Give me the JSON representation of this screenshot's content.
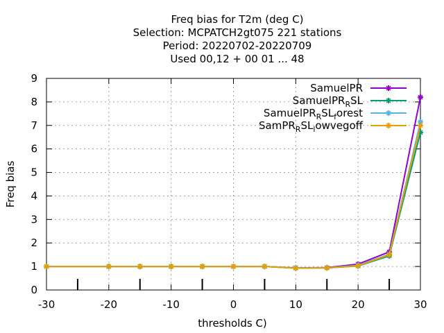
{
  "chart_data": {
    "type": "line",
    "title_lines": [
      "Freq bias  for T2m (deg C)",
      "Selection: MCPATCH2gt075    221 stations",
      "Period: 20220702-20220709",
      "Used  00,12  + 00 01 ... 48"
    ],
    "xlabel": "thresholds C)",
    "ylabel": "Freq bias",
    "xlim": [
      -30,
      30
    ],
    "ylim": [
      0,
      9
    ],
    "xticks": [
      -30,
      -20,
      -10,
      0,
      10,
      20,
      30
    ],
    "xtick_labels": [
      "-30",
      "-20",
      "-10",
      "0",
      "10",
      "20",
      "30"
    ],
    "yticks": [
      0,
      1,
      2,
      3,
      4,
      5,
      6,
      7,
      8,
      9
    ],
    "ytick_labels": [
      "0",
      "1",
      "2",
      "3",
      "4",
      "5",
      "6",
      "7",
      "8",
      "9"
    ],
    "x_minor_ticks": [
      -25,
      -15,
      -5,
      5,
      15,
      25
    ],
    "grid": true,
    "legend_position": "top-right",
    "x": [
      -30,
      -20,
      -15,
      -10,
      -5,
      0,
      5,
      10,
      15,
      20,
      25,
      30
    ],
    "series": [
      {
        "name": "SamuelPR",
        "name_parts": [
          [
            "SamuelPR",
            ""
          ]
        ],
        "color": "#9400d3",
        "values": [
          1.0,
          1.0,
          1.0,
          1.0,
          1.0,
          1.0,
          1.0,
          0.94,
          0.95,
          1.1,
          1.62,
          8.2
        ]
      },
      {
        "name": "SamuelPR_RSL",
        "name_parts": [
          [
            "SamuelPR",
            ""
          ],
          [
            "R",
            "sub"
          ],
          [
            "SL",
            ""
          ]
        ],
        "color": "#009e73",
        "values": [
          1.0,
          1.0,
          1.0,
          1.0,
          1.0,
          1.0,
          1.0,
          0.93,
          0.94,
          1.02,
          1.45,
          6.7
        ]
      },
      {
        "name": "SamuelPR_RSL_forest",
        "name_parts": [
          [
            "SamuelPR",
            ""
          ],
          [
            "R",
            "sub"
          ],
          [
            "SL",
            ""
          ],
          [
            "f",
            "sub"
          ],
          [
            "orest",
            ""
          ]
        ],
        "color": "#56b4e9",
        "values": [
          1.0,
          1.0,
          1.0,
          1.0,
          1.0,
          1.0,
          1.0,
          0.94,
          0.94,
          1.05,
          1.52,
          7.15
        ]
      },
      {
        "name": "SamPR_RSL_lowvegoff",
        "name_parts": [
          [
            "SamPR",
            ""
          ],
          [
            "R",
            "sub"
          ],
          [
            "SL",
            ""
          ],
          [
            "l",
            "sub"
          ],
          [
            "owvegoff",
            ""
          ]
        ],
        "color": "#e69f00",
        "values": [
          1.0,
          1.0,
          1.0,
          1.0,
          1.0,
          1.0,
          1.0,
          0.93,
          0.94,
          1.03,
          1.5,
          7.0
        ]
      }
    ]
  }
}
